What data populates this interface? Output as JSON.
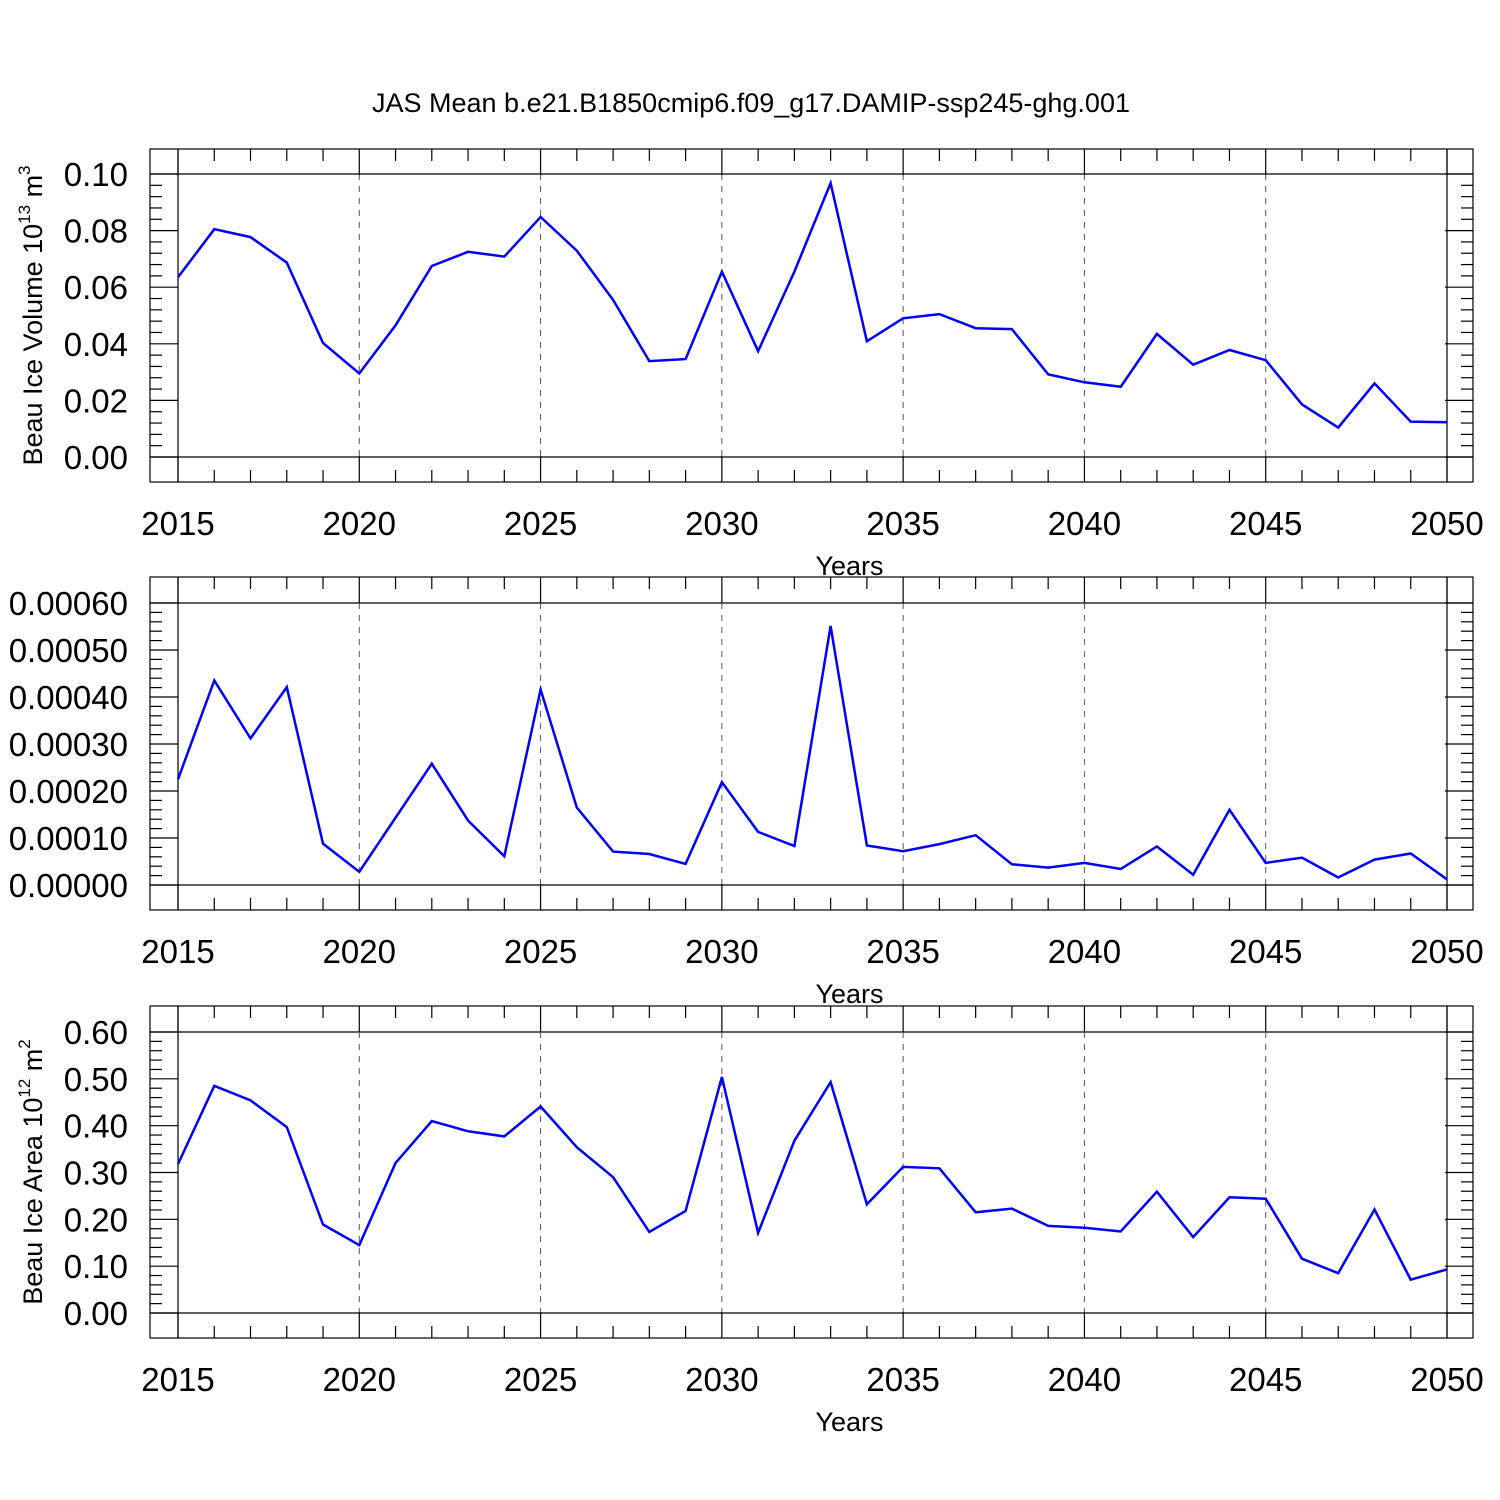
{
  "title": "JAS Mean b.e21.B1850cmip6.f09_g17.DAMIP-ssp245-ghg.001",
  "colors": {
    "series": "#0000ff",
    "axes": "#000000",
    "grid": "#555555"
  },
  "chart_data": [
    {
      "type": "line",
      "title": "JAS Mean b.e21.B1850cmip6.f09_g17.DAMIP-ssp245-ghg.001",
      "xlabel": "Years",
      "ylabel": "Beau Ice Volume 10",
      "ylabel_sup1": "13",
      "ylabel_mid": " m",
      "ylabel_sup2": "3",
      "xlim": [
        2015,
        2050
      ],
      "ylim": [
        0,
        0.1
      ],
      "xticks": [
        2015,
        2020,
        2025,
        2030,
        2035,
        2040,
        2045,
        2050
      ],
      "xtick_labels": [
        "2015",
        "2020",
        "2025",
        "2030",
        "2035",
        "2040",
        "2045",
        "2050"
      ],
      "yticks": [
        0,
        0.02,
        0.04,
        0.06,
        0.08,
        0.1
      ],
      "ytick_labels": [
        "0.00",
        "0.02",
        "0.04",
        "0.06",
        "0.08",
        "0.10"
      ],
      "grid": "vertical dashed at major x ticks",
      "x": [
        2015,
        2016,
        2017,
        2018,
        2019,
        2020,
        2021,
        2022,
        2023,
        2024,
        2025,
        2026,
        2027,
        2028,
        2029,
        2030,
        2031,
        2032,
        2033,
        2034,
        2035,
        2036,
        2037,
        2038,
        2039,
        2040,
        2041,
        2042,
        2043,
        2044,
        2045,
        2046,
        2047,
        2048,
        2049,
        2050
      ],
      "series": [
        {
          "values": [
            0.0635,
            0.0805,
            0.0777,
            0.0687,
            0.0403,
            0.0295,
            0.0465,
            0.0675,
            0.0725,
            0.0708,
            0.0848,
            0.0729,
            0.0555,
            0.0339,
            0.0346,
            0.0655,
            0.0374,
            0.0655,
            0.0968,
            0.0409,
            0.049,
            0.0505,
            0.0455,
            0.0452,
            0.0292,
            0.0264,
            0.0248,
            0.0435,
            0.0326,
            0.0378,
            0.0342,
            0.0186,
            0.0104,
            0.026,
            0.0125,
            0.0123
          ]
        }
      ]
    },
    {
      "type": "line",
      "xlabel": "Years",
      "ylabel": "",
      "xlim": [
        2015,
        2050
      ],
      "ylim": [
        0,
        0.0006
      ],
      "xticks": [
        2015,
        2020,
        2025,
        2030,
        2035,
        2040,
        2045,
        2050
      ],
      "xtick_labels": [
        "2015",
        "2020",
        "2025",
        "2030",
        "2035",
        "2040",
        "2045",
        "2050"
      ],
      "yticks": [
        0,
        0.0001,
        0.0002,
        0.0003,
        0.0004,
        0.0005,
        0.0006
      ],
      "ytick_labels": [
        "0.00000",
        "0.00010",
        "0.00020",
        "0.00030",
        "0.00040",
        "0.00050",
        "0.00060"
      ],
      "grid": "vertical dashed at major x ticks",
      "x": [
        2015,
        2016,
        2017,
        2018,
        2019,
        2020,
        2021,
        2022,
        2023,
        2024,
        2025,
        2026,
        2027,
        2028,
        2029,
        2030,
        2031,
        2032,
        2033,
        2034,
        2035,
        2036,
        2037,
        2038,
        2039,
        2040,
        2041,
        2042,
        2043,
        2044,
        2045,
        2046,
        2047,
        2048,
        2049,
        2050
      ],
      "series": [
        {
          "values": [
            0.000225,
            0.000435,
            0.000312,
            0.000421,
            8.8e-05,
            2.8e-05,
            0.000143,
            0.000258,
            0.000137,
            6.1e-05,
            0.000416,
            0.000165,
            7.1e-05,
            6.6e-05,
            4.5e-05,
            0.000219,
            0.000113,
            8.3e-05,
            0.000551,
            8.4e-05,
            7.2e-05,
            8.7e-05,
            0.000106,
            4.4e-05,
            3.7e-05,
            4.7e-05,
            3.4e-05,
            8.2e-05,
            2.2e-05,
            0.00016,
            4.7e-05,
            5.8e-05,
            1.6e-05,
            5.4e-05,
            6.7e-05,
            1.2e-05
          ]
        }
      ]
    },
    {
      "type": "line",
      "xlabel": "Years",
      "ylabel": "Beau Ice Area 10",
      "ylabel_sup1": "12",
      "ylabel_mid": " m",
      "ylabel_sup2": "2",
      "xlim": [
        2015,
        2050
      ],
      "ylim": [
        0,
        0.6
      ],
      "xticks": [
        2015,
        2020,
        2025,
        2030,
        2035,
        2040,
        2045,
        2050
      ],
      "xtick_labels": [
        "2015",
        "2020",
        "2025",
        "2030",
        "2035",
        "2040",
        "2045",
        "2050"
      ],
      "yticks": [
        0,
        0.1,
        0.2,
        0.3,
        0.4,
        0.5,
        0.6
      ],
      "ytick_labels": [
        "0.00",
        "0.10",
        "0.20",
        "0.30",
        "0.40",
        "0.50",
        "0.60"
      ],
      "grid": "vertical dashed at major x ticks",
      "x": [
        2015,
        2016,
        2017,
        2018,
        2019,
        2020,
        2021,
        2022,
        2023,
        2024,
        2025,
        2026,
        2027,
        2028,
        2029,
        2030,
        2031,
        2032,
        2033,
        2034,
        2035,
        2036,
        2037,
        2038,
        2039,
        2040,
        2041,
        2042,
        2043,
        2044,
        2045,
        2046,
        2047,
        2048,
        2049,
        2050
      ],
      "series": [
        {
          "values": [
            0.318,
            0.485,
            0.454,
            0.397,
            0.189,
            0.145,
            0.32,
            0.41,
            0.388,
            0.377,
            0.441,
            0.354,
            0.29,
            0.173,
            0.218,
            0.504,
            0.171,
            0.368,
            0.493,
            0.232,
            0.312,
            0.309,
            0.215,
            0.223,
            0.186,
            0.182,
            0.174,
            0.259,
            0.162,
            0.247,
            0.244,
            0.116,
            0.085,
            0.221,
            0.071,
            0.093
          ]
        }
      ]
    }
  ]
}
